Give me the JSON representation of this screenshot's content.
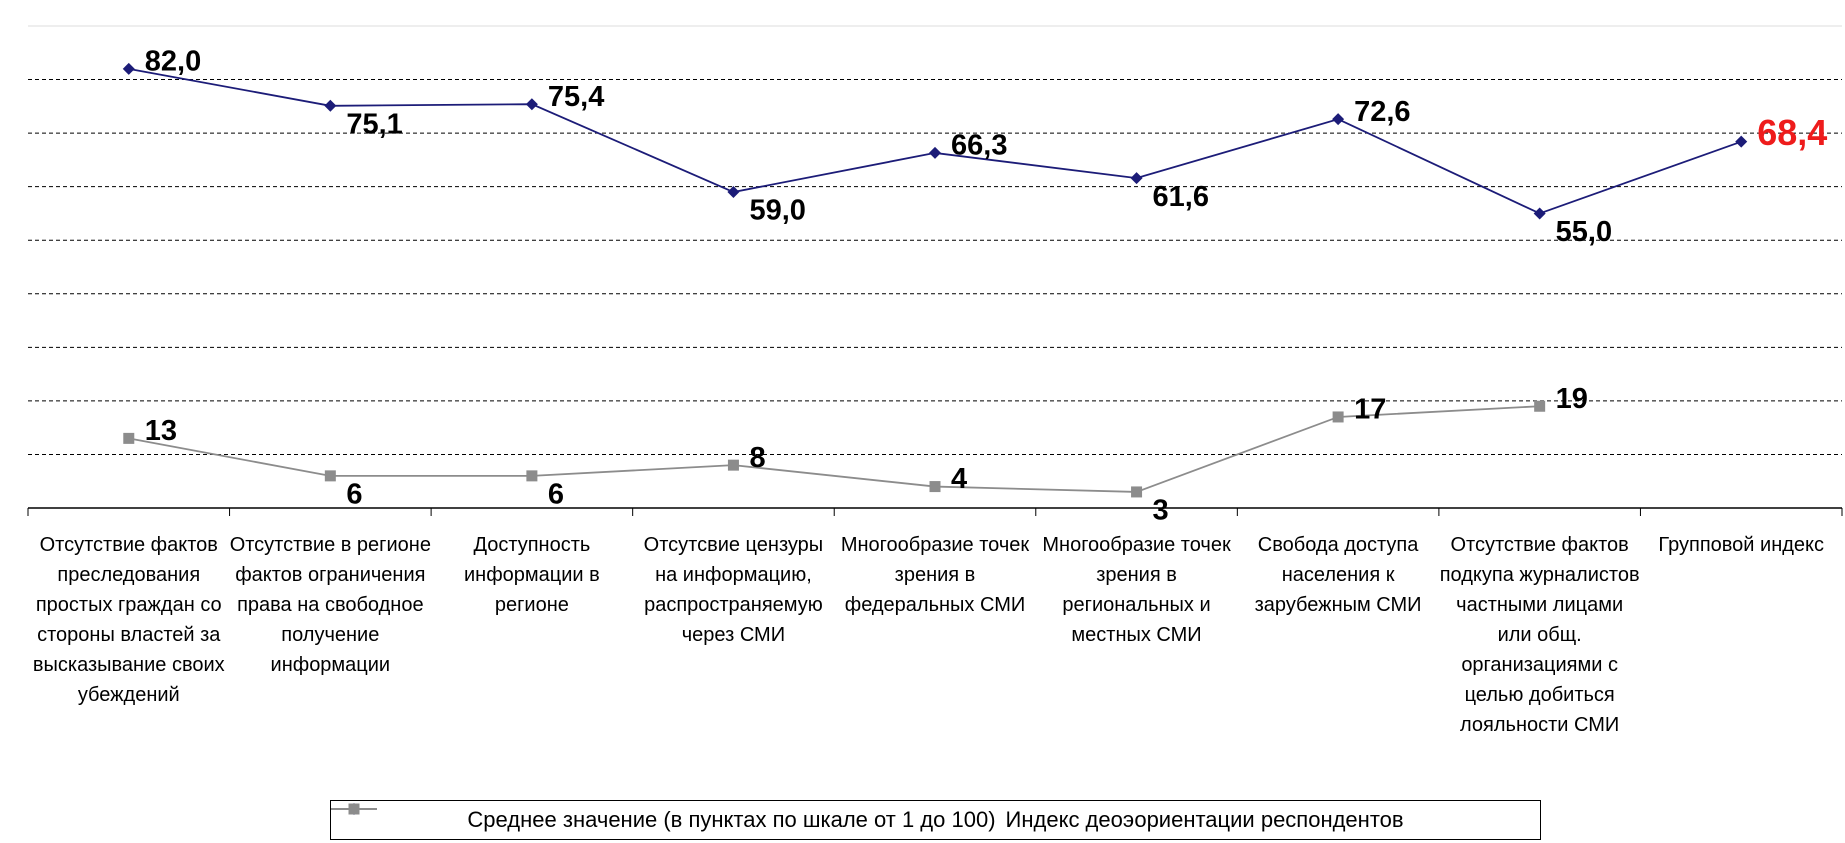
{
  "chart_data": {
    "type": "line",
    "categories": [
      "Отсутствие фактов преследования простых граждан со стороны властей за высказывание своих убеждений",
      "Отсутствие в регионе фактов ограничения права на свободное получение информации",
      "Доступность информации в регионе",
      "Отсутсвие цензуры на информацию, распространяемую через СМИ",
      "Многообразие точек зрения в федеральных СМИ",
      "Многообразие точек зрения в региональных и местных СМИ",
      "Свобода доступа населения к зарубежным СМИ",
      "Отсутствие фактов подкупа журналистов частными лицами или общ. организациями с целью добиться лояльности СМИ",
      "Групповой индекс"
    ],
    "series": [
      {
        "name": "Среднее значение (в пунктах по шкале от 1 до 100)",
        "color": "#1c1c78",
        "marker": "diamond",
        "values": [
          82.0,
          75.1,
          75.4,
          59.0,
          66.3,
          61.6,
          72.6,
          55.0,
          68.4
        ],
        "value_labels": [
          "82,0",
          "75,1",
          "75,4",
          "59,0",
          "66,3",
          "61,6",
          "72,6",
          "55,0",
          "68,4"
        ],
        "value_label_colors": [
          "#000000",
          "#000000",
          "#000000",
          "#000000",
          "#000000",
          "#000000",
          "#000000",
          "#000000",
          "#ee1c1c"
        ]
      },
      {
        "name": "Индекс деоэориентации респондентов",
        "color": "#8c8c8c",
        "marker": "square",
        "values": [
          13,
          6,
          6,
          8,
          4,
          3,
          17,
          19,
          null
        ]
      }
    ],
    "ylim": [
      0,
      90
    ],
    "yticks": [
      0,
      10,
      20,
      30,
      40,
      50,
      60,
      70,
      80
    ],
    "grid": true
  }
}
